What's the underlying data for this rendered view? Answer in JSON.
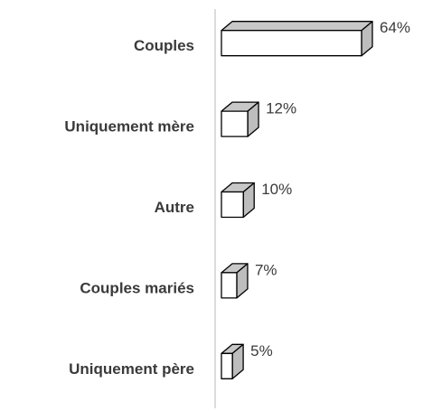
{
  "chart_data": {
    "type": "bar3d-horizontal",
    "categories": [
      "Couples",
      "Uniquement mère",
      "Autre",
      "Couples mariés",
      "Uniquement père"
    ],
    "values": [
      64,
      12,
      10,
      7,
      5
    ],
    "value_labels": [
      "64%",
      "12%",
      "10%",
      "7%",
      "5%"
    ],
    "color": "#ffffff"
  }
}
